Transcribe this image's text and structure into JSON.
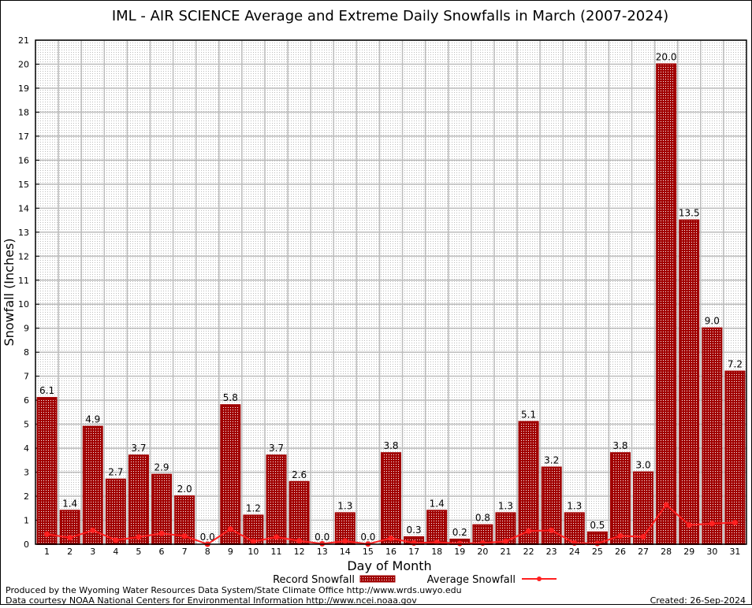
{
  "chart_data": {
    "type": "bar",
    "title": "IML - AIR SCIENCE Average and Extreme Daily Snowfalls in March (2007-2024)",
    "xlabel": "Day of Month",
    "ylabel": "Snowfall (Inches)",
    "ylim": [
      0,
      21
    ],
    "yticks": [
      0,
      1,
      2,
      3,
      4,
      5,
      6,
      7,
      8,
      9,
      10,
      11,
      12,
      13,
      14,
      15,
      16,
      17,
      18,
      19,
      20,
      21
    ],
    "grid": true,
    "legend_placement": "bottom-center",
    "categories": [
      1,
      2,
      3,
      4,
      5,
      6,
      7,
      8,
      9,
      10,
      11,
      12,
      13,
      14,
      15,
      16,
      17,
      18,
      19,
      20,
      21,
      22,
      23,
      24,
      25,
      26,
      27,
      28,
      29,
      30,
      31
    ],
    "series": [
      {
        "name": "Record Snowfall",
        "type": "bar",
        "color": "#a00000",
        "values": [
          6.1,
          1.4,
          4.9,
          2.7,
          3.7,
          2.9,
          2.0,
          0.0,
          5.8,
          1.2,
          3.7,
          2.6,
          0.0,
          1.3,
          0.0,
          3.8,
          0.3,
          1.4,
          0.2,
          0.8,
          1.3,
          5.1,
          3.2,
          1.3,
          0.5,
          3.8,
          3.0,
          20.0,
          13.5,
          9.0,
          7.2
        ],
        "labels": [
          "6.1",
          "1.4",
          "4.9",
          "2.7",
          "3.7",
          "2.9",
          "2.0",
          "0.0",
          "5.8",
          "1.2",
          "3.7",
          "2.6",
          "0.0",
          "1.3",
          "0.0",
          "3.8",
          "0.3",
          "1.4",
          "0.2",
          "0.8",
          "1.3",
          "5.1",
          "3.2",
          "1.3",
          "0.5",
          "3.8",
          "3.0",
          "20.0",
          "13.5",
          "9.0",
          "7.2"
        ]
      },
      {
        "name": "Average Snowfall",
        "type": "line",
        "color": "#ff2020",
        "values": [
          0.42,
          0.27,
          0.58,
          0.17,
          0.3,
          0.45,
          0.34,
          0.0,
          0.63,
          0.11,
          0.3,
          0.14,
          0.02,
          0.13,
          0.01,
          0.25,
          0.05,
          0.08,
          0.03,
          0.05,
          0.12,
          0.55,
          0.58,
          0.05,
          0.03,
          0.35,
          0.31,
          1.64,
          0.8,
          0.86,
          0.9
        ]
      }
    ]
  },
  "footer": {
    "produced_by": "Produced by the Wyoming Water Resources Data System/State Climate Office http://www.wrds.uwyo.edu",
    "data_courtesy": "Data courtesy NOAA National Centers for Environmental Information http://www.ncei.noaa.gov",
    "created": "Created: 26-Sep-2024"
  }
}
